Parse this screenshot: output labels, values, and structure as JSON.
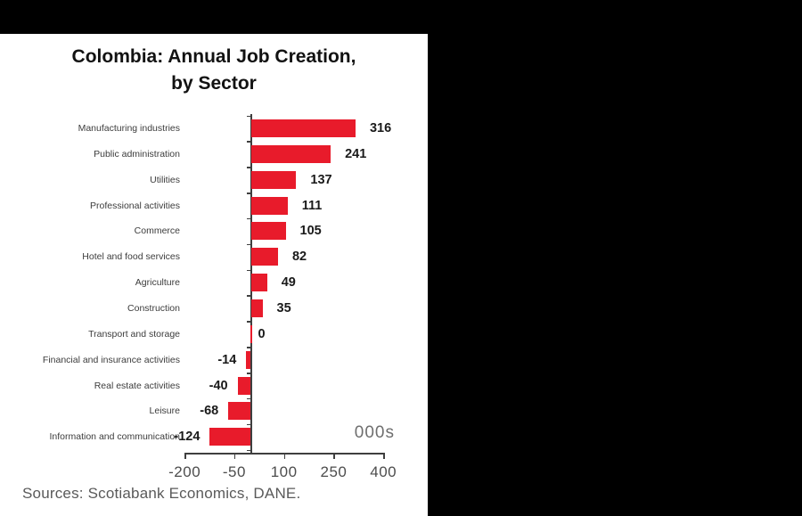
{
  "chart_data": {
    "type": "bar",
    "orientation": "horizontal",
    "title": "Colombia: Annual Job Creation, by Sector",
    "title_lines": [
      "Colombia: Annual Job Creation,",
      "by Sector"
    ],
    "categories": [
      "Manufacturing industries",
      "Public administration",
      "Utilities",
      "Professional activities",
      "Commerce",
      "Hotel and food services",
      "Agriculture",
      "Construction",
      "Transport and storage",
      "Financial and insurance activities",
      "Real estate activities",
      "Leisure",
      "Information and communication"
    ],
    "values": [
      316,
      241,
      137,
      111,
      105,
      82,
      49,
      35,
      0,
      -14,
      -40,
      -68,
      -124
    ],
    "unit_label": "000s",
    "x_ticks": [
      -200,
      -50,
      100,
      250,
      400
    ],
    "xlim": [
      -200,
      400
    ],
    "grid": false,
    "legend": "none",
    "bar_color": "#e81b2b",
    "axis_color": "#3f3f3f",
    "source": "Sources: Scotiabank Economics, DANE."
  }
}
